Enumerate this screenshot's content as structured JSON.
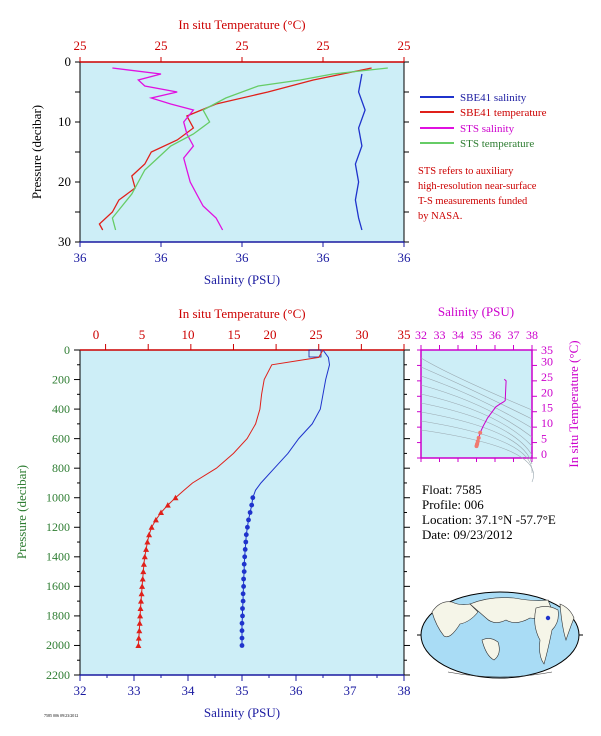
{
  "colors": {
    "salinity": "#1f33cc",
    "temperature": "#e0201a",
    "sts_salinity": "#e010e0",
    "sts_temperature": "#66cc66",
    "plot_bg": "#cdeef7",
    "axis_red": "#cc0000",
    "axis_blue": "#1a1aa0",
    "axis_green": "#2e7d32",
    "axis_magenta": "#cc00cc"
  },
  "top_panel": {
    "top_axis_label": "In situ Temperature (°C)",
    "top_ticks": [
      "25",
      "25",
      "25",
      "25",
      "25"
    ],
    "bottom_axis_label": "Salinity (PSU)",
    "bottom_ticks": [
      "36",
      "36",
      "36",
      "36",
      "36"
    ],
    "left_axis_label": "Pressure (decibar)",
    "left_ticks": [
      "0",
      "10",
      "20",
      "30"
    ],
    "legend": [
      {
        "label": "SBE41 salinity",
        "color": "#1f33cc"
      },
      {
        "label": "SBE41 temperature",
        "color": "#e0201a"
      },
      {
        "label": "STS salinity",
        "color": "#e010e0"
      },
      {
        "label": "STS temperature",
        "color": "#66cc66"
      }
    ],
    "note": [
      "STS refers to auxiliary",
      "high-resolution near-surface",
      "T-S measurements funded",
      "by NASA."
    ]
  },
  "bottom_panel": {
    "top_axis_label": "In situ Temperature (°C)",
    "top_ticks": [
      "0",
      "5",
      "10",
      "15",
      "20",
      "25",
      "30",
      "35"
    ],
    "bottom_axis_label": "Salinity (PSU)",
    "bottom_ticks": [
      "32",
      "33",
      "34",
      "35",
      "36",
      "37",
      "38"
    ],
    "left_axis_label": "Pressure (decibar)",
    "left_ticks": [
      "0",
      "200",
      "400",
      "600",
      "800",
      "1000",
      "1200",
      "1400",
      "1600",
      "1800",
      "2000",
      "2200"
    ]
  },
  "ts_panel": {
    "top_axis_label": "Salinity (PSU)",
    "top_ticks": [
      "32",
      "33",
      "34",
      "35",
      "36",
      "37",
      "38"
    ],
    "right_axis_label": "In situ Temperature (°C)",
    "right_ticks": [
      "0",
      "5",
      "10",
      "15",
      "20",
      "25",
      "30",
      "35"
    ]
  },
  "info": {
    "float": "Float:  7585",
    "profile": "Profile:  006",
    "location": "Location:  37.1°N  -57.7°E",
    "date": "Date:  09/23/2012"
  },
  "footer_small": "7585 006 09/23/2012",
  "chart_data": [
    {
      "type": "line",
      "title": "",
      "xlabel_bottom": "Salinity (PSU)",
      "xlabel_top": "In situ Temperature (°C)",
      "ylabel": "Pressure (decibar)",
      "ylim": [
        30,
        0
      ],
      "note": "near-surface profile; salinity and temperature axis tick labels all read 36 and 25 respectively",
      "series": [
        {
          "name": "SBE41 salinity",
          "pressure": [
            2,
            5,
            8,
            11,
            14,
            17,
            20,
            23,
            26,
            28
          ],
          "x_fraction": [
            0.87,
            0.86,
            0.88,
            0.86,
            0.87,
            0.85,
            0.86,
            0.85,
            0.86,
            0.87
          ]
        },
        {
          "name": "SBE41 temperature",
          "pressure": [
            1,
            3,
            5,
            7,
            9,
            11,
            13,
            15,
            17,
            19,
            21,
            23,
            25,
            27,
            28
          ],
          "x_fraction": [
            0.9,
            0.72,
            0.58,
            0.42,
            0.33,
            0.35,
            0.3,
            0.22,
            0.2,
            0.16,
            0.17,
            0.12,
            0.1,
            0.06,
            0.07
          ]
        },
        {
          "name": "STS salinity",
          "pressure": [
            1,
            2,
            3,
            4,
            5,
            6,
            7,
            8,
            10,
            12,
            14,
            16,
            18,
            20,
            22,
            24,
            26,
            28
          ],
          "x_fraction": [
            0.1,
            0.25,
            0.18,
            0.2,
            0.3,
            0.22,
            0.28,
            0.35,
            0.32,
            0.33,
            0.35,
            0.32,
            0.33,
            0.34,
            0.36,
            0.38,
            0.42,
            0.44
          ]
        },
        {
          "name": "STS temperature",
          "pressure": [
            1,
            2,
            3,
            4,
            6,
            8,
            10,
            12,
            14,
            16,
            18,
            20,
            22,
            24,
            26,
            28
          ],
          "x_fraction": [
            0.95,
            0.78,
            0.68,
            0.55,
            0.45,
            0.38,
            0.4,
            0.35,
            0.28,
            0.24,
            0.2,
            0.18,
            0.16,
            0.13,
            0.1,
            0.11
          ]
        }
      ]
    },
    {
      "type": "line",
      "title": "",
      "xlabel_bottom": "Salinity (PSU)",
      "xlabel_top": "In situ Temperature (°C)",
      "ylabel": "Pressure (decibar)",
      "salinity_xlim": [
        32,
        38
      ],
      "temperature_xlim": [
        0,
        35
      ],
      "ylim": [
        2200,
        0
      ],
      "series": [
        {
          "name": "SBE41 salinity",
          "axis": "salinity",
          "pressure": [
            0,
            50,
            100,
            200,
            300,
            400,
            500,
            600,
            700,
            800,
            900,
            950,
            1000,
            1050,
            1100,
            1150,
            1200,
            1250,
            1300,
            1350,
            1400,
            1450,
            1500,
            1550,
            1600,
            1650,
            1700,
            1750,
            1800,
            1850,
            1900,
            1950,
            2000
          ],
          "values": [
            36.5,
            36.6,
            36.62,
            36.55,
            36.5,
            36.45,
            36.3,
            36.05,
            35.85,
            35.6,
            35.35,
            35.25,
            35.2,
            35.18,
            35.15,
            35.12,
            35.1,
            35.08,
            35.07,
            35.06,
            35.05,
            35.04,
            35.04,
            35.03,
            35.03,
            35.02,
            35.02,
            35.01,
            35.01,
            35.0,
            35.0,
            35.0,
            35.0
          ]
        },
        {
          "name": "SBE41 temperature",
          "axis": "temperature",
          "pressure": [
            0,
            50,
            100,
            200,
            300,
            400,
            500,
            600,
            700,
            800,
            900,
            950,
            1000,
            1050,
            1100,
            1150,
            1200,
            1250,
            1300,
            1350,
            1400,
            1450,
            1500,
            1550,
            1600,
            1650,
            1700,
            1750,
            1800,
            1850,
            1900,
            1950,
            2000
          ],
          "values": [
            25.5,
            25.0,
            19.5,
            18.6,
            18.3,
            18.1,
            17.6,
            16.6,
            15.0,
            13.0,
            10.2,
            9.2,
            8.2,
            7.3,
            6.5,
            5.9,
            5.4,
            5.1,
            4.9,
            4.75,
            4.6,
            4.5,
            4.42,
            4.35,
            4.28,
            4.22,
            4.16,
            4.1,
            4.05,
            4.0,
            3.95,
            3.9,
            3.85
          ]
        }
      ]
    },
    {
      "type": "scatter",
      "title": "",
      "xlabel": "Salinity (PSU)",
      "ylabel": "In situ Temperature (°C)",
      "xlim": [
        32,
        38
      ],
      "ylim": [
        0,
        35
      ],
      "series": [
        {
          "name": "T-S",
          "salinity": [
            36.5,
            36.6,
            36.55,
            36.45,
            36.3,
            36.05,
            35.6,
            35.35,
            35.2,
            35.12,
            35.07,
            35.04,
            35.02,
            35.0
          ],
          "temperature": [
            25.5,
            25.0,
            18.6,
            18.1,
            17.6,
            16.6,
            13.0,
            10.2,
            8.2,
            6.5,
            5.4,
            4.6,
            4.28,
            3.85
          ]
        }
      ]
    }
  ]
}
